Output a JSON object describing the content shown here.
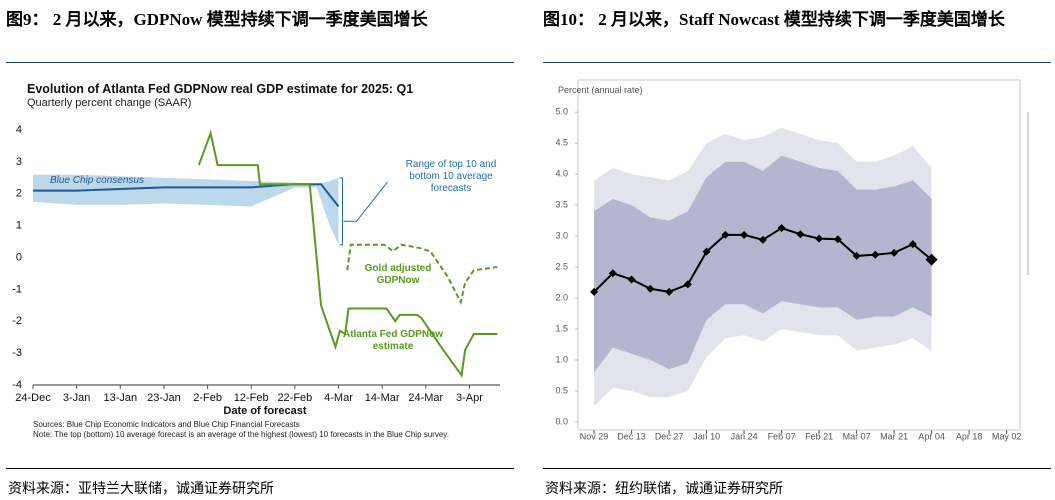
{
  "document": {
    "figures": [
      {
        "caption": "图9：  2 月以来，GDPNow 模型持续下调一季度美国增长",
        "source": "资料来源：亚特兰大联储，诚通证券研究所"
      },
      {
        "caption": "图10：  2 月以来，Staff Nowcast 模型持续下调一季度美国增长",
        "source": "资料来源：纽约联储，诚通证券研究所"
      }
    ]
  },
  "chart_data": [
    {
      "type": "line",
      "title": "Evolution of Atlanta Fed GDPNow real GDP estimate for 2025: Q1",
      "subtitle": "Quarterly percent change (SAAR)",
      "x_label": "Date of forecast",
      "notes": [
        "Sources: Blue Chip Economic Indicators and Blue Chip Financial Forecasts",
        "Note: The top (bottom) 10 average forecast is an average of the highest (lowest) 10 forecasts in the Blue Chip survey."
      ],
      "band_label": "Range of top 10 and bottom 10 average forecasts",
      "xlim": [
        0,
        107
      ],
      "xticks": [
        {
          "value": 0,
          "label": "24-Dec"
        },
        {
          "value": 10,
          "label": "3-Jan"
        },
        {
          "value": 20,
          "label": "13-Jan"
        },
        {
          "value": 30,
          "label": "23-Jan"
        },
        {
          "value": 40,
          "label": "2-Feb"
        },
        {
          "value": 50,
          "label": "12-Feb"
        },
        {
          "value": 60,
          "label": "22-Feb"
        },
        {
          "value": 70,
          "label": "4-Mar"
        },
        {
          "value": 80,
          "label": "14-Mar"
        },
        {
          "value": 90,
          "label": "24-Mar"
        },
        {
          "value": 100,
          "label": "3-Apr"
        }
      ],
      "ylim": [
        -4,
        4
      ],
      "yticks": [
        4,
        3,
        2,
        1,
        0,
        -1,
        -2,
        -3,
        -4
      ],
      "grid": false,
      "bands": [
        {
          "color": "#bcd8ea",
          "x": [
            0,
            10,
            20,
            30,
            40,
            50,
            60,
            65,
            68,
            70
          ],
          "upper": [
            2.6,
            2.6,
            2.55,
            2.5,
            2.45,
            2.4,
            2.35,
            2.3,
            2.4,
            2.5
          ],
          "lower": [
            1.75,
            1.65,
            1.65,
            1.7,
            1.65,
            1.6,
            2.2,
            2.2,
            1.0,
            0.4
          ]
        }
      ],
      "series": [
        {
          "name": "Blue Chip consensus",
          "color": "#1f5a96",
          "line_style": "solid",
          "x": [
            0,
            10,
            20,
            30,
            40,
            50,
            60,
            66,
            70
          ],
          "values": [
            2.1,
            2.1,
            2.15,
            2.2,
            2.2,
            2.2,
            2.3,
            2.3,
            1.6
          ]
        },
        {
          "name": "Atlanta Fed GDPNow estimate",
          "color": "#5a9a1f",
          "line_style": "solid",
          "x": [
            38,
            40.7,
            42.3,
            51.5,
            52,
            63.4,
            66,
            68,
            69.3,
            70.3,
            71.5,
            72.3,
            81,
            83,
            84,
            88,
            89,
            94,
            98.2,
            99,
            101,
            106.4
          ],
          "values": [
            2.9,
            3.9,
            2.9,
            2.9,
            2.3,
            2.3,
            -1.5,
            -2.3,
            -2.8,
            -2.3,
            -2.4,
            -1.6,
            -1.6,
            -2.0,
            -1.8,
            -1.8,
            -1.9,
            -2.9,
            -3.7,
            -2.9,
            -2.4,
            -2.4
          ]
        },
        {
          "name": "Gold adjusted GDPNow",
          "color": "#5a9a1f",
          "line_style": "dashed",
          "x": [
            72,
            72.8,
            80.5,
            82.5,
            84.4,
            88.5,
            91,
            95,
            98,
            99,
            101,
            106.4
          ],
          "values": [
            -0.4,
            0.4,
            0.4,
            0.2,
            0.4,
            0.3,
            0.2,
            -0.6,
            -1.4,
            -0.8,
            -0.4,
            -0.3
          ]
        }
      ]
    },
    {
      "type": "line",
      "y_label": "Percent (annual rate)",
      "xlim": [
        -6,
        159
      ],
      "xticks": [
        {
          "value": 0,
          "label": "Nov 29"
        },
        {
          "value": 14,
          "label": "Dec 13"
        },
        {
          "value": 28,
          "label": "Dec 27"
        },
        {
          "value": 42,
          "label": "Jan 10"
        },
        {
          "value": 56,
          "label": "Jan 24"
        },
        {
          "value": 70,
          "label": "Feb 07"
        },
        {
          "value": 84,
          "label": "Feb 21"
        },
        {
          "value": 98,
          "label": "Mar 07"
        },
        {
          "value": 112,
          "label": "Mar 21"
        },
        {
          "value": 126,
          "label": "Apr 04"
        },
        {
          "value": 140,
          "label": "Apr 18"
        },
        {
          "value": 154,
          "label": "May 02"
        }
      ],
      "ylim": [
        -0.13,
        5.52
      ],
      "yticks": [
        {
          "value": 0,
          "label": "0.0"
        },
        {
          "value": 0.5,
          "label": "0.5"
        },
        {
          "value": 1,
          "label": "1.0"
        },
        {
          "value": 1.5,
          "label": "1.5"
        },
        {
          "value": 2,
          "label": "2.0"
        },
        {
          "value": 2.5,
          "label": "2.5"
        },
        {
          "value": 3,
          "label": "3.0"
        },
        {
          "value": 3.5,
          "label": "3.5"
        },
        {
          "value": 4,
          "label": "4.0"
        },
        {
          "value": 4.5,
          "label": "4.5"
        },
        {
          "value": 5,
          "label": "5.0"
        }
      ],
      "grid": false,
      "x": [
        0,
        7,
        14,
        21,
        28,
        35,
        42,
        49,
        56,
        63,
        70,
        77,
        84,
        91,
        98,
        105,
        112,
        119,
        126
      ],
      "bands": [
        {
          "color": "#e3e3ed",
          "upper": [
            3.9,
            4.1,
            4.0,
            3.95,
            3.9,
            4.05,
            4.5,
            4.65,
            4.55,
            4.6,
            4.75,
            4.65,
            4.55,
            4.5,
            4.2,
            4.2,
            4.3,
            4.45,
            4.1
          ],
          "lower": [
            0.25,
            0.55,
            0.5,
            0.4,
            0.4,
            0.5,
            1.05,
            1.35,
            1.4,
            1.3,
            1.5,
            1.45,
            1.4,
            1.4,
            1.15,
            1.2,
            1.25,
            1.35,
            1.15
          ]
        },
        {
          "color": "#b4b5ce",
          "upper": [
            3.4,
            3.6,
            3.5,
            3.3,
            3.25,
            3.4,
            3.95,
            4.2,
            4.2,
            4.05,
            4.3,
            4.2,
            4.1,
            4.05,
            3.75,
            3.75,
            3.8,
            3.9,
            3.6
          ],
          "lower": [
            0.8,
            1.2,
            1.1,
            1.0,
            0.85,
            0.95,
            1.65,
            1.9,
            1.9,
            1.75,
            1.95,
            1.9,
            1.85,
            1.85,
            1.65,
            1.7,
            1.7,
            1.85,
            1.7
          ]
        }
      ],
      "series": [
        {
          "color": "#000000",
          "marker": "diamond",
          "values": [
            2.1,
            2.4,
            2.3,
            2.15,
            2.1,
            2.22,
            2.75,
            3.02,
            3.02,
            2.94,
            3.13,
            3.03,
            2.96,
            2.95,
            2.68,
            2.7,
            2.73,
            2.87,
            2.62
          ]
        }
      ]
    }
  ]
}
